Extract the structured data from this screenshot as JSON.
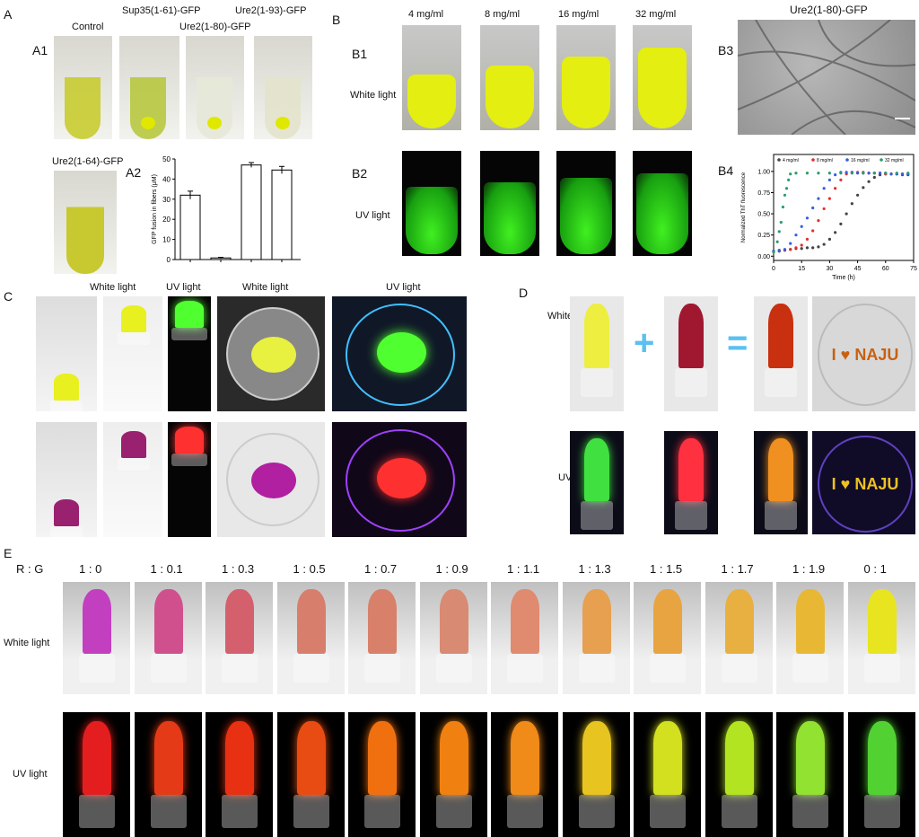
{
  "panelA": {
    "label": "A",
    "a1": "A1",
    "a2": "A2",
    "control": "Control",
    "sup35": "Sup35(1-61)-GFP",
    "ure80": "Ure2(1-80)-GFP",
    "ure93": "Ure2(1-93)-GFP",
    "ure64": "Ure2(1-64)-GFP"
  },
  "panelB": {
    "label": "B",
    "b1": "B1",
    "b2": "B2",
    "b3": "B3",
    "b4": "B4",
    "white": "White light",
    "uv": "UV light",
    "concentrations": [
      "4 mg/ml",
      "8 mg/ml",
      "16 mg/ml",
      "32 mg/ml"
    ],
    "tem_title": "Ure2(1-80)-GFP"
  },
  "panelC": {
    "label": "C",
    "headers": [
      "White light",
      "UV light",
      "White light",
      "UV light"
    ]
  },
  "panelD": {
    "label": "D",
    "white": "White light",
    "uv": "UV light",
    "plus": "+",
    "equals": "=",
    "plate_text": "I ♥ NAJU"
  },
  "panelE": {
    "label": "E",
    "rg": "R : G",
    "ratios": [
      "1 : 0",
      "1 : 0.1",
      "1 : 0.3",
      "1 : 0.5",
      "1 : 0.7",
      "1 : 0.9",
      "1 : 1.1",
      "1 : 1.3",
      "1 : 1.5",
      "1 : 1.7",
      "1 : 1.9",
      "0 : 1"
    ],
    "white": "White light",
    "uv": "UV light",
    "white_colors": [
      "#c23fc0",
      "#d0508e",
      "#d4606e",
      "#d87e6c",
      "#d8806a",
      "#d98a72",
      "#e08a70",
      "#e6a050",
      "#e8a440",
      "#e8b040",
      "#e8b834",
      "#e8e420"
    ],
    "uv_colors": [
      "#e41e1e",
      "#e53a18",
      "#e83012",
      "#e84c12",
      "#f07010",
      "#f08010",
      "#f08a18",
      "#e8c420",
      "#d2e020",
      "#b2e422",
      "#92e232",
      "#52d232"
    ]
  },
  "chart_data": [
    {
      "type": "bar",
      "panel": "A2",
      "categories": [
        "Control",
        "Sup35(1-61)-GFP",
        "Ure2(1-80)-GFP",
        "Ure2(1-93)-GFP"
      ],
      "values": [
        32,
        0.8,
        47,
        44.5
      ],
      "errors": [
        2,
        0.3,
        1.2,
        1.8
      ],
      "xlabel": "",
      "ylabel": "GFP fusion in fibers (μM)",
      "ylim": [
        0,
        50
      ],
      "yticks": [
        "0",
        "10",
        "20",
        "30",
        "40",
        "50"
      ]
    },
    {
      "type": "scatter",
      "panel": "B4",
      "xlabel": "Time (h)",
      "ylabel": "Normalized ThT fluorescence",
      "xlim": [
        0,
        75
      ],
      "ylim": [
        -0.05,
        1.2
      ],
      "xticks": [
        "0",
        "15",
        "30",
        "45",
        "60",
        "75"
      ],
      "yticks": [
        "0.00",
        "0.25",
        "0.50",
        "0.75",
        "1.00"
      ],
      "legend": "top",
      "series": [
        {
          "name": "4 mg/ml",
          "color": "#444444",
          "x": [
            0,
            3,
            6,
            9,
            12,
            15,
            18,
            21,
            24,
            27,
            30,
            33,
            36,
            39,
            42,
            45,
            48,
            51,
            54,
            57,
            60,
            63,
            66,
            69,
            72
          ],
          "y": [
            0.06,
            0.07,
            0.07,
            0.08,
            0.09,
            0.09,
            0.1,
            0.1,
            0.11,
            0.14,
            0.2,
            0.28,
            0.38,
            0.5,
            0.62,
            0.72,
            0.81,
            0.88,
            0.93,
            0.96,
            0.97,
            0.97,
            0.97,
            0.96,
            0.96
          ]
        },
        {
          "name": "8 mg/ml",
          "color": "#e03030",
          "x": [
            0,
            3,
            6,
            9,
            12,
            15,
            18,
            21,
            24,
            27,
            30,
            33,
            36,
            39,
            42,
            45,
            48,
            51,
            54,
            57,
            60,
            63,
            66,
            69,
            72
          ],
          "y": [
            0.05,
            0.06,
            0.07,
            0.08,
            0.1,
            0.13,
            0.2,
            0.3,
            0.42,
            0.56,
            0.68,
            0.8,
            0.9,
            0.97,
            0.99,
            0.99,
            0.99,
            0.98,
            0.98,
            0.98,
            0.97,
            0.97,
            0.97,
            0.97,
            0.97
          ]
        },
        {
          "name": "16 mg/ml",
          "color": "#3060e0",
          "x": [
            0,
            3,
            6,
            9,
            12,
            15,
            18,
            21,
            24,
            27,
            30,
            33,
            36,
            39,
            42,
            45,
            48,
            51,
            54,
            57,
            60,
            63,
            66,
            69,
            72
          ],
          "y": [
            0.06,
            0.06,
            0.08,
            0.15,
            0.25,
            0.35,
            0.45,
            0.57,
            0.68,
            0.8,
            0.9,
            0.96,
            0.99,
            0.99,
            0.99,
            0.98,
            0.98,
            0.98,
            0.98,
            0.98,
            0.98,
            0.97,
            0.97,
            0.97,
            0.97
          ]
        },
        {
          "name": "32 mg/ml",
          "color": "#2a9d6a",
          "x": [
            0,
            2,
            3,
            4,
            5,
            6,
            7,
            8,
            9,
            12,
            18,
            24,
            30,
            36,
            42,
            48,
            54,
            60,
            66,
            72
          ],
          "y": [
            0.05,
            0.17,
            0.29,
            0.4,
            0.58,
            0.72,
            0.8,
            0.9,
            0.97,
            0.98,
            0.98,
            0.98,
            0.98,
            0.98,
            0.98,
            0.98,
            0.98,
            0.98,
            0.98,
            0.98
          ]
        }
      ]
    }
  ]
}
